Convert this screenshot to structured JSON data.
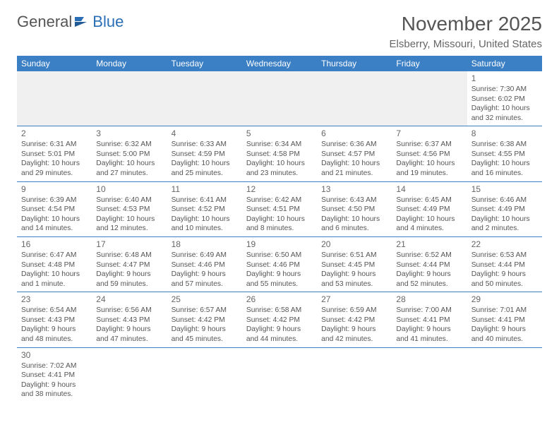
{
  "brand": {
    "general": "General",
    "blue": "Blue"
  },
  "header": {
    "title": "November 2025",
    "location": "Elsberry, Missouri, United States"
  },
  "dayHeaders": [
    "Sunday",
    "Monday",
    "Tuesday",
    "Wednesday",
    "Thursday",
    "Friday",
    "Saturday"
  ],
  "colors": {
    "header_bg": "#3b7fc4",
    "header_text": "#ffffff",
    "border": "#3b7fc4",
    "blank_bg": "#f0f0f0",
    "brand_blue": "#2a6fb5",
    "text": "#555555"
  },
  "calendar": {
    "lead_blank": 6,
    "trail_blank": 6,
    "days": [
      {
        "n": 1,
        "sunrise": "7:30 AM",
        "sunset": "6:02 PM",
        "daylight": "10 hours and 32 minutes."
      },
      {
        "n": 2,
        "sunrise": "6:31 AM",
        "sunset": "5:01 PM",
        "daylight": "10 hours and 29 minutes."
      },
      {
        "n": 3,
        "sunrise": "6:32 AM",
        "sunset": "5:00 PM",
        "daylight": "10 hours and 27 minutes."
      },
      {
        "n": 4,
        "sunrise": "6:33 AM",
        "sunset": "4:59 PM",
        "daylight": "10 hours and 25 minutes."
      },
      {
        "n": 5,
        "sunrise": "6:34 AM",
        "sunset": "4:58 PM",
        "daylight": "10 hours and 23 minutes."
      },
      {
        "n": 6,
        "sunrise": "6:36 AM",
        "sunset": "4:57 PM",
        "daylight": "10 hours and 21 minutes."
      },
      {
        "n": 7,
        "sunrise": "6:37 AM",
        "sunset": "4:56 PM",
        "daylight": "10 hours and 19 minutes."
      },
      {
        "n": 8,
        "sunrise": "6:38 AM",
        "sunset": "4:55 PM",
        "daylight": "10 hours and 16 minutes."
      },
      {
        "n": 9,
        "sunrise": "6:39 AM",
        "sunset": "4:54 PM",
        "daylight": "10 hours and 14 minutes."
      },
      {
        "n": 10,
        "sunrise": "6:40 AM",
        "sunset": "4:53 PM",
        "daylight": "10 hours and 12 minutes."
      },
      {
        "n": 11,
        "sunrise": "6:41 AM",
        "sunset": "4:52 PM",
        "daylight": "10 hours and 10 minutes."
      },
      {
        "n": 12,
        "sunrise": "6:42 AM",
        "sunset": "4:51 PM",
        "daylight": "10 hours and 8 minutes."
      },
      {
        "n": 13,
        "sunrise": "6:43 AM",
        "sunset": "4:50 PM",
        "daylight": "10 hours and 6 minutes."
      },
      {
        "n": 14,
        "sunrise": "6:45 AM",
        "sunset": "4:49 PM",
        "daylight": "10 hours and 4 minutes."
      },
      {
        "n": 15,
        "sunrise": "6:46 AM",
        "sunset": "4:49 PM",
        "daylight": "10 hours and 2 minutes."
      },
      {
        "n": 16,
        "sunrise": "6:47 AM",
        "sunset": "4:48 PM",
        "daylight": "10 hours and 1 minute."
      },
      {
        "n": 17,
        "sunrise": "6:48 AM",
        "sunset": "4:47 PM",
        "daylight": "9 hours and 59 minutes."
      },
      {
        "n": 18,
        "sunrise": "6:49 AM",
        "sunset": "4:46 PM",
        "daylight": "9 hours and 57 minutes."
      },
      {
        "n": 19,
        "sunrise": "6:50 AM",
        "sunset": "4:46 PM",
        "daylight": "9 hours and 55 minutes."
      },
      {
        "n": 20,
        "sunrise": "6:51 AM",
        "sunset": "4:45 PM",
        "daylight": "9 hours and 53 minutes."
      },
      {
        "n": 21,
        "sunrise": "6:52 AM",
        "sunset": "4:44 PM",
        "daylight": "9 hours and 52 minutes."
      },
      {
        "n": 22,
        "sunrise": "6:53 AM",
        "sunset": "4:44 PM",
        "daylight": "9 hours and 50 minutes."
      },
      {
        "n": 23,
        "sunrise": "6:54 AM",
        "sunset": "4:43 PM",
        "daylight": "9 hours and 48 minutes."
      },
      {
        "n": 24,
        "sunrise": "6:56 AM",
        "sunset": "4:43 PM",
        "daylight": "9 hours and 47 minutes."
      },
      {
        "n": 25,
        "sunrise": "6:57 AM",
        "sunset": "4:42 PM",
        "daylight": "9 hours and 45 minutes."
      },
      {
        "n": 26,
        "sunrise": "6:58 AM",
        "sunset": "4:42 PM",
        "daylight": "9 hours and 44 minutes."
      },
      {
        "n": 27,
        "sunrise": "6:59 AM",
        "sunset": "4:42 PM",
        "daylight": "9 hours and 42 minutes."
      },
      {
        "n": 28,
        "sunrise": "7:00 AM",
        "sunset": "4:41 PM",
        "daylight": "9 hours and 41 minutes."
      },
      {
        "n": 29,
        "sunrise": "7:01 AM",
        "sunset": "4:41 PM",
        "daylight": "9 hours and 40 minutes."
      },
      {
        "n": 30,
        "sunrise": "7:02 AM",
        "sunset": "4:41 PM",
        "daylight": "9 hours and 38 minutes."
      }
    ]
  },
  "labels": {
    "sunrise": "Sunrise: ",
    "sunset": "Sunset: ",
    "daylight": "Daylight: "
  }
}
